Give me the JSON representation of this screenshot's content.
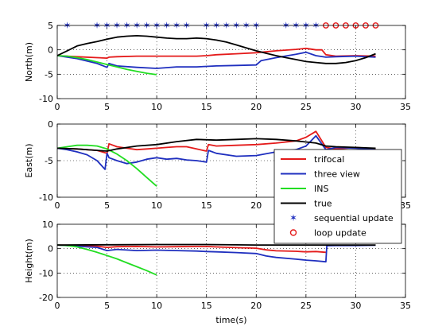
{
  "chart_data": [
    {
      "type": "line",
      "ylabel": "North(m)",
      "xlabel": "",
      "xlim": [
        0,
        35
      ],
      "ylim": [
        -10,
        5
      ],
      "xticks": [
        "0",
        "5",
        "10",
        "15",
        "20",
        "25",
        "30",
        "35"
      ],
      "yticks": [
        "5",
        "0",
        "-5",
        "-10"
      ],
      "grid": "dotted",
      "series": [
        {
          "name": "trifocal",
          "color": "#e41a1a",
          "x": [
            0,
            2,
            4,
            5,
            5.2,
            6,
            8,
            10,
            12,
            14,
            15,
            16,
            18,
            20,
            22,
            24,
            25,
            26,
            26.6,
            27,
            28,
            30,
            32
          ],
          "y": [
            -1.2,
            -1.4,
            -1.6,
            -1.7,
            -1.5,
            -1.4,
            -1.3,
            -1.3,
            -1.3,
            -1.3,
            -1.2,
            -1.0,
            -0.8,
            -0.6,
            -0.2,
            0.1,
            0.3,
            0.0,
            0.0,
            -1.0,
            -1.3,
            -1.2,
            -1.3
          ]
        },
        {
          "name": "three view",
          "color": "#1f2fbf",
          "x": [
            0,
            2,
            4,
            5,
            5.2,
            6,
            8,
            10,
            12,
            14,
            15,
            16,
            18,
            20,
            20.5,
            22,
            24,
            25,
            26,
            27,
            28,
            30,
            32
          ],
          "y": [
            -1.2,
            -1.8,
            -2.8,
            -3.6,
            -2.8,
            -3.3,
            -3.6,
            -3.8,
            -3.5,
            -3.5,
            -3.4,
            -3.3,
            -3.2,
            -3.1,
            -2.2,
            -1.6,
            -0.9,
            -0.5,
            -1.2,
            -1.5,
            -1.4,
            -1.3,
            -1.5
          ]
        },
        {
          "name": "INS",
          "color": "#22dd22",
          "x": [
            0,
            1,
            2,
            3,
            4,
            5,
            6,
            7,
            8,
            9,
            10
          ],
          "y": [
            -1.2,
            -1.3,
            -1.6,
            -2.0,
            -2.5,
            -3.0,
            -3.5,
            -4.0,
            -4.4,
            -4.8,
            -5.1
          ]
        },
        {
          "name": "true",
          "color": "#000000",
          "x": [
            0,
            1,
            2,
            3,
            4,
            5,
            6,
            7,
            8,
            9,
            10,
            11,
            12,
            13,
            14,
            15,
            16,
            17,
            18,
            19,
            20,
            21,
            22,
            23,
            24,
            25,
            26,
            27,
            28,
            29,
            30,
            31,
            32
          ],
          "y": [
            -1.2,
            -0.2,
            0.8,
            1.3,
            1.7,
            2.2,
            2.6,
            2.8,
            2.9,
            2.8,
            2.6,
            2.4,
            2.3,
            2.3,
            2.4,
            2.3,
            2.0,
            1.6,
            1.0,
            0.4,
            -0.2,
            -0.7,
            -1.2,
            -1.6,
            -2.0,
            -2.4,
            -2.6,
            -2.8,
            -2.8,
            -2.6,
            -2.2,
            -1.6,
            -0.8
          ]
        }
      ],
      "markers": [
        {
          "name": "sequential update",
          "symbol": "star",
          "color": "#1f2fbf",
          "y": 5,
          "x": [
            1,
            4,
            5,
            6,
            7,
            8,
            9,
            10,
            11,
            12,
            13,
            15,
            16,
            17,
            18,
            19,
            20,
            23,
            24,
            25,
            26
          ]
        },
        {
          "name": "loop update",
          "symbol": "circle",
          "color": "#e41a1a",
          "y": 5,
          "x": [
            27,
            28,
            29,
            30,
            31,
            32
          ]
        }
      ]
    },
    {
      "type": "line",
      "ylabel": "East(m)",
      "xlabel": "",
      "xlim": [
        0,
        35
      ],
      "ylim": [
        -10,
        0
      ],
      "xticks": [
        "0",
        "5",
        "10",
        "15",
        "20",
        "25",
        "30",
        "35"
      ],
      "yticks": [
        "0",
        "-5",
        "-10"
      ],
      "grid": "dotted",
      "series": [
        {
          "name": "trifocal",
          "color": "#e41a1a",
          "x": [
            0,
            2,
            4,
            5,
            5.2,
            6,
            7,
            8,
            9,
            10,
            11,
            12,
            13,
            14,
            15,
            15.2,
            16,
            18,
            20,
            22,
            24,
            25,
            26,
            27,
            28,
            30,
            32
          ],
          "y": [
            -3.3,
            -3.4,
            -3.6,
            -4.0,
            -2.7,
            -3.1,
            -3.3,
            -3.5,
            -3.4,
            -3.3,
            -3.2,
            -3.1,
            -3.1,
            -3.4,
            -3.7,
            -2.8,
            -3.0,
            -2.9,
            -2.8,
            -2.6,
            -2.3,
            -1.8,
            -1.0,
            -3.2,
            -3.4,
            -3.2,
            -3.4
          ]
        },
        {
          "name": "three view",
          "color": "#1f2fbf",
          "x": [
            0,
            1,
            2,
            3,
            4,
            4.8,
            5,
            5.2,
            6,
            7,
            8,
            9,
            10,
            11,
            12,
            13,
            14,
            15,
            15.2,
            16,
            18,
            20,
            22,
            24,
            25,
            26,
            27,
            28,
            30,
            32
          ],
          "y": [
            -3.3,
            -3.5,
            -3.8,
            -4.2,
            -5.0,
            -6.2,
            -4.0,
            -4.6,
            -5.0,
            -5.4,
            -5.2,
            -4.8,
            -4.6,
            -4.8,
            -4.7,
            -4.9,
            -5.0,
            -5.2,
            -3.6,
            -4.0,
            -4.4,
            -4.3,
            -3.8,
            -3.5,
            -3.0,
            -1.6,
            -3.5,
            -3.2,
            -3.3,
            -3.5
          ]
        },
        {
          "name": "INS",
          "color": "#22dd22",
          "x": [
            0,
            1,
            2,
            3,
            4,
            5,
            6,
            7,
            8,
            9,
            10
          ],
          "y": [
            -3.3,
            -3.1,
            -2.9,
            -2.9,
            -3.0,
            -3.4,
            -4.1,
            -5.0,
            -6.1,
            -7.3,
            -8.5
          ]
        },
        {
          "name": "true",
          "color": "#000000",
          "x": [
            0,
            2,
            4,
            5,
            6,
            8,
            10,
            12,
            14,
            16,
            18,
            20,
            22,
            24,
            26,
            27,
            28,
            30,
            32
          ],
          "y": [
            -3.3,
            -3.4,
            -3.6,
            -3.7,
            -3.4,
            -3.0,
            -2.8,
            -2.4,
            -2.1,
            -2.2,
            -2.1,
            -2.0,
            -2.1,
            -2.3,
            -2.6,
            -3.0,
            -3.1,
            -3.2,
            -3.3
          ]
        }
      ]
    },
    {
      "type": "line",
      "ylabel": "Height(m)",
      "xlabel": "time(s)",
      "xlim": [
        0,
        35
      ],
      "ylim": [
        -20,
        10
      ],
      "xticks": [
        "0",
        "5",
        "10",
        "15",
        "20",
        "25",
        "30",
        "35"
      ],
      "yticks": [
        "10",
        "0",
        "-10",
        "-20"
      ],
      "grid": "dotted",
      "series": [
        {
          "name": "trifocal",
          "color": "#e41a1a",
          "x": [
            0,
            2,
            4,
            5,
            6,
            8,
            10,
            12,
            14,
            15,
            16,
            18,
            20,
            21,
            22,
            24,
            25,
            26,
            27
          ],
          "y": [
            1.5,
            1.3,
            1.0,
            0.5,
            0.8,
            0.9,
            0.7,
            0.8,
            0.9,
            0.9,
            0.7,
            0.4,
            0.2,
            -0.5,
            -0.9,
            -1.1,
            -1.3,
            -1.2,
            -1.5
          ]
        },
        {
          "name": "three view",
          "color": "#1f2fbf",
          "x": [
            0,
            2,
            4,
            5,
            6,
            8,
            10,
            12,
            14,
            15,
            16,
            18,
            20,
            21,
            22,
            24,
            25,
            26,
            27,
            27.1,
            28,
            30,
            32
          ],
          "y": [
            1.5,
            1.0,
            0.5,
            -0.8,
            -0.3,
            -0.8,
            -0.6,
            -0.8,
            -1.0,
            -1.2,
            -1.3,
            -1.6,
            -2.0,
            -3.0,
            -3.6,
            -4.3,
            -4.7,
            -5.0,
            -5.4,
            1.2,
            1.3,
            1.3,
            1.4
          ]
        },
        {
          "name": "INS",
          "color": "#22dd22",
          "x": [
            0,
            1,
            2,
            3,
            4,
            5,
            6,
            7,
            8,
            9,
            10
          ],
          "y": [
            1.5,
            1.3,
            0.7,
            -0.3,
            -1.5,
            -2.8,
            -4.2,
            -5.8,
            -7.4,
            -9.0,
            -10.8
          ]
        },
        {
          "name": "true",
          "color": "#000000",
          "x": [
            0,
            5,
            10,
            15,
            20,
            25,
            27,
            30,
            32
          ],
          "y": [
            1.5,
            1.6,
            1.7,
            1.7,
            1.5,
            1.5,
            1.5,
            1.5,
            1.5
          ]
        }
      ]
    }
  ],
  "legend": {
    "placement": "middle-right",
    "entries": [
      {
        "label": "trifocal",
        "kind": "line",
        "color": "#e41a1a"
      },
      {
        "label": "three view",
        "kind": "line",
        "color": "#1f2fbf"
      },
      {
        "label": "INS",
        "kind": "line",
        "color": "#22dd22"
      },
      {
        "label": "true",
        "kind": "line",
        "color": "#000000"
      },
      {
        "label": "sequential update",
        "kind": "star",
        "color": "#1f2fbf"
      },
      {
        "label": "loop update",
        "kind": "circle",
        "color": "#e41a1a"
      }
    ]
  }
}
